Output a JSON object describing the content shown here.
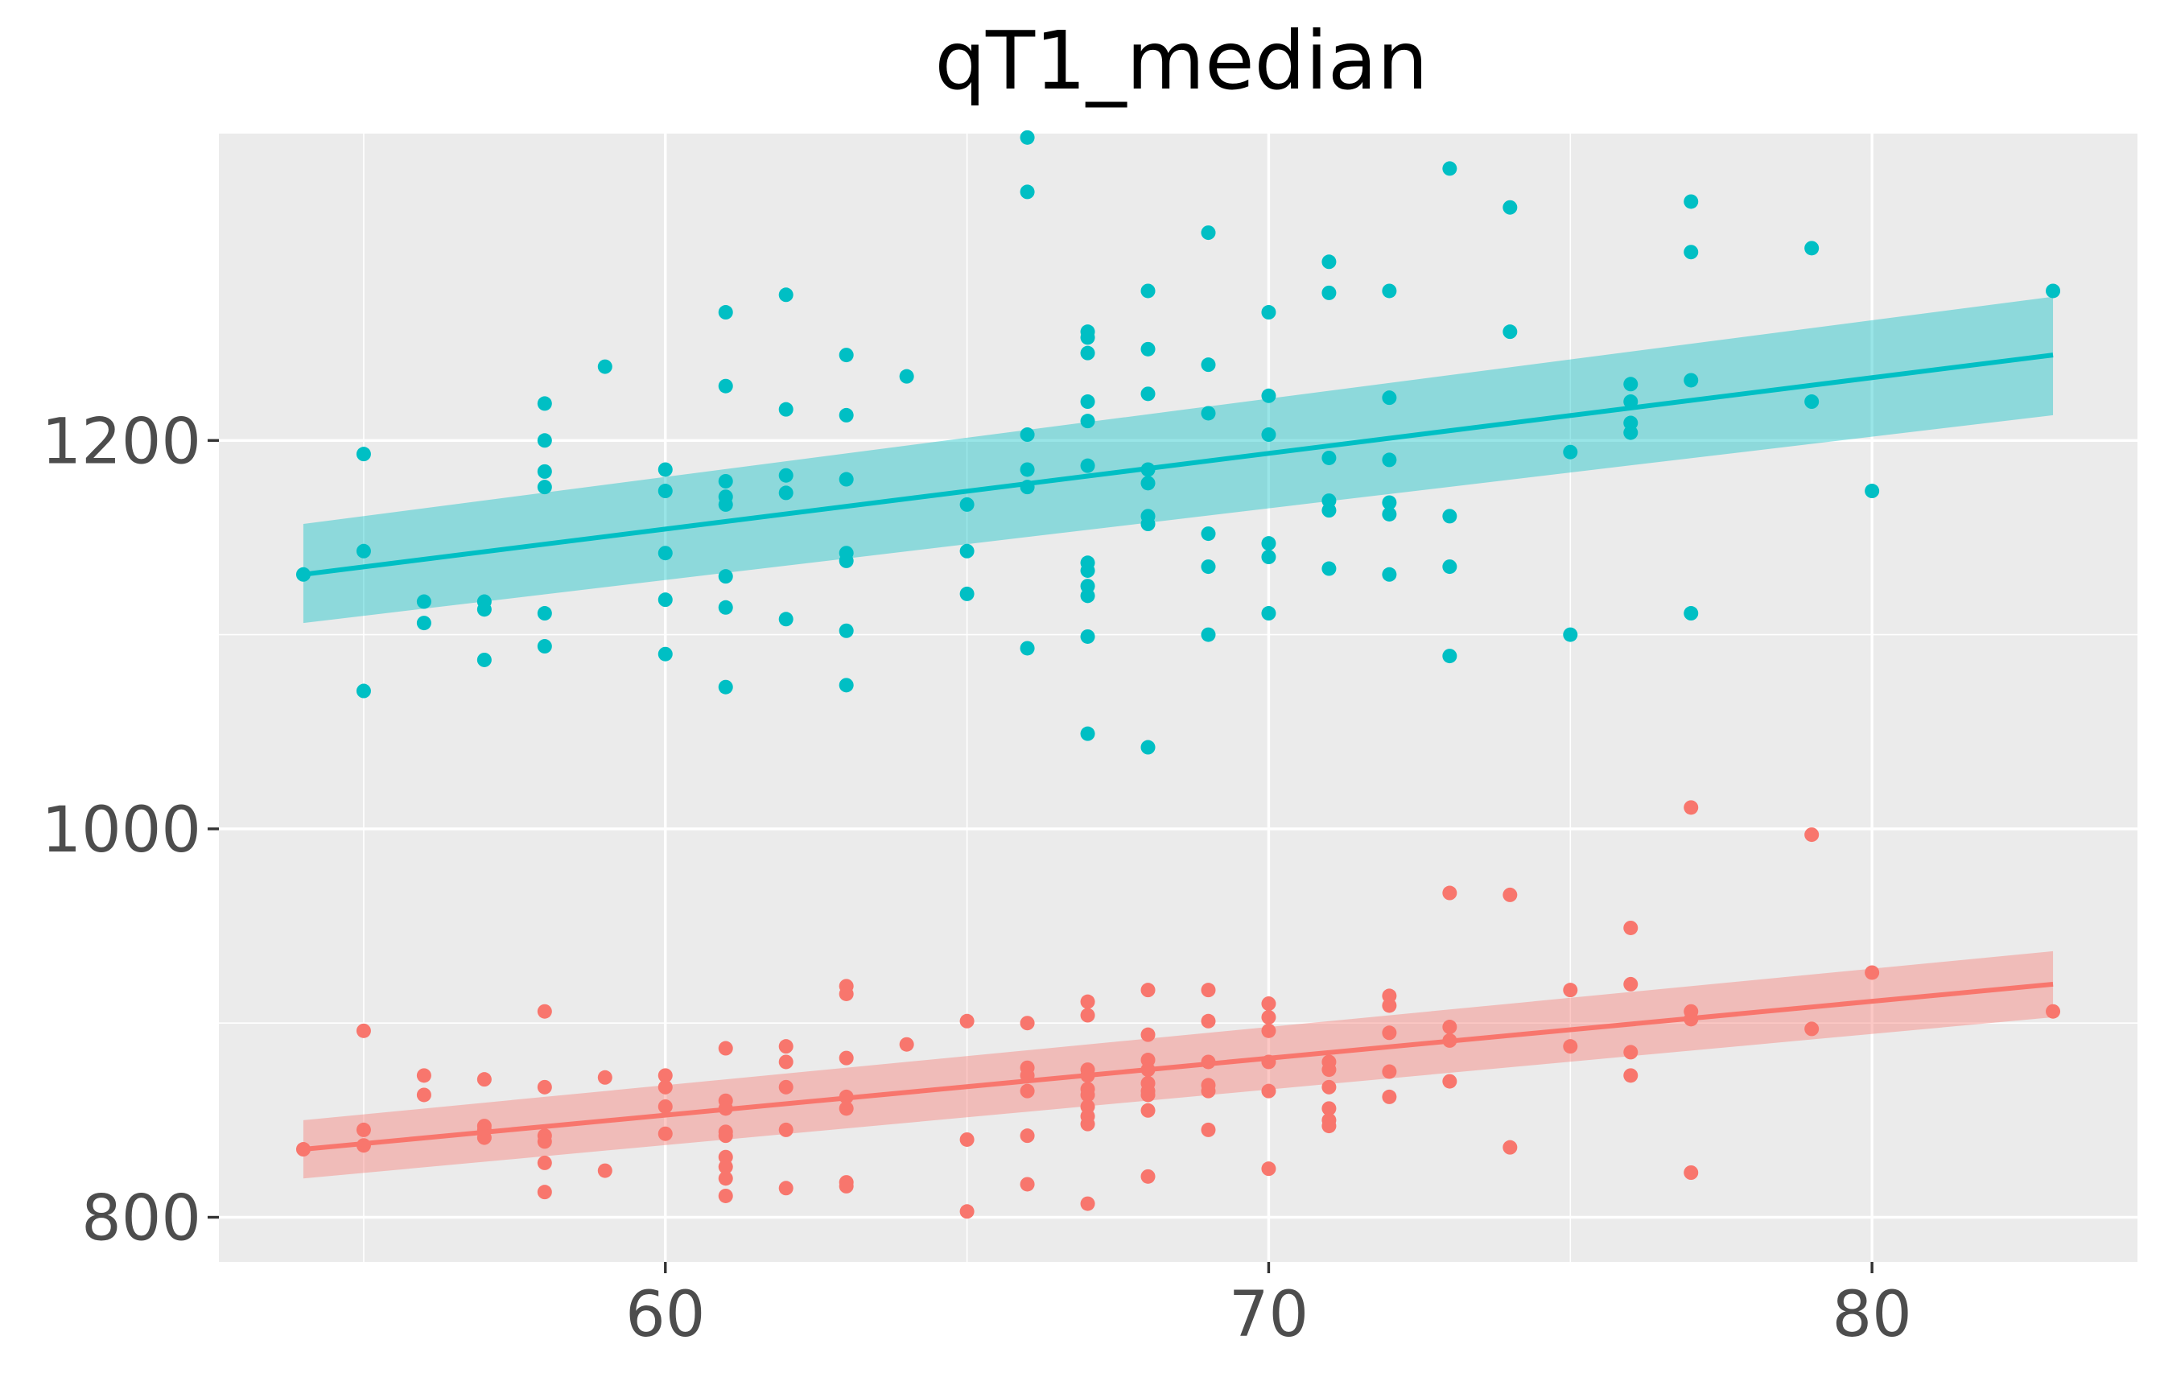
{
  "chart_data": {
    "type": "scatter",
    "title": "qT1_median",
    "xlabel": "",
    "ylabel": "",
    "xlim": [
      52.6,
      84.4
    ],
    "ylim": [
      777,
      1358
    ],
    "x_ticks": [
      60,
      70,
      80
    ],
    "y_ticks": [
      800,
      1000,
      1200
    ],
    "x_tick_labels": [
      "60",
      "70",
      "80"
    ],
    "y_tick_labels": [
      "800",
      "1000",
      "1200"
    ],
    "x_minor_ticks": [
      55,
      65,
      75
    ],
    "y_minor_ticks": [
      900,
      1100
    ],
    "grid": true,
    "legend": "none",
    "series": [
      {
        "color": "#00BFC4",
        "fill_color": "#00BFC4",
        "points": [
          [
            54,
            1131
          ],
          [
            55,
            1193
          ],
          [
            55,
            1143
          ],
          [
            55,
            1071
          ],
          [
            56,
            1117
          ],
          [
            56,
            1106
          ],
          [
            57,
            1117
          ],
          [
            57,
            1113
          ],
          [
            57,
            1087
          ],
          [
            58,
            1219
          ],
          [
            58,
            1200
          ],
          [
            58,
            1184
          ],
          [
            58,
            1176
          ],
          [
            58,
            1111
          ],
          [
            58,
            1094
          ],
          [
            59,
            1238
          ],
          [
            60,
            1185
          ],
          [
            60,
            1174
          ],
          [
            60,
            1142
          ],
          [
            60,
            1118
          ],
          [
            60,
            1090
          ],
          [
            61,
            1266
          ],
          [
            61,
            1228
          ],
          [
            61,
            1179
          ],
          [
            61,
            1171
          ],
          [
            61,
            1167
          ],
          [
            61,
            1130
          ],
          [
            61,
            1114
          ],
          [
            61,
            1073
          ],
          [
            62,
            1275
          ],
          [
            62,
            1216
          ],
          [
            62,
            1182
          ],
          [
            62,
            1173
          ],
          [
            62,
            1108
          ],
          [
            63,
            1244
          ],
          [
            63,
            1213
          ],
          [
            63,
            1180
          ],
          [
            63,
            1142
          ],
          [
            63,
            1138
          ],
          [
            63,
            1102
          ],
          [
            63,
            1074
          ],
          [
            64,
            1233
          ],
          [
            65,
            1167
          ],
          [
            65,
            1143
          ],
          [
            65,
            1121
          ],
          [
            66,
            1356
          ],
          [
            66,
            1328
          ],
          [
            66,
            1203
          ],
          [
            66,
            1185
          ],
          [
            66,
            1176
          ],
          [
            66,
            1093
          ],
          [
            67,
            1256
          ],
          [
            67,
            1253
          ],
          [
            67,
            1245
          ],
          [
            67,
            1220
          ],
          [
            67,
            1210
          ],
          [
            67,
            1187
          ],
          [
            67,
            1137
          ],
          [
            67,
            1133
          ],
          [
            67,
            1125
          ],
          [
            67,
            1120
          ],
          [
            67,
            1099
          ],
          [
            67,
            1049
          ],
          [
            68,
            1277
          ],
          [
            68,
            1247
          ],
          [
            68,
            1224
          ],
          [
            68,
            1185
          ],
          [
            68,
            1178
          ],
          [
            68,
            1161
          ],
          [
            68,
            1157
          ],
          [
            68,
            1042
          ],
          [
            69,
            1307
          ],
          [
            69,
            1239
          ],
          [
            69,
            1214
          ],
          [
            69,
            1152
          ],
          [
            69,
            1135
          ],
          [
            69,
            1100
          ],
          [
            70,
            1266
          ],
          [
            70,
            1223
          ],
          [
            70,
            1203
          ],
          [
            70,
            1147
          ],
          [
            70,
            1140
          ],
          [
            70,
            1111
          ],
          [
            71,
            1292
          ],
          [
            71,
            1276
          ],
          [
            71,
            1191
          ],
          [
            71,
            1169
          ],
          [
            71,
            1164
          ],
          [
            71,
            1134
          ],
          [
            72,
            1277
          ],
          [
            72,
            1222
          ],
          [
            72,
            1190
          ],
          [
            72,
            1168
          ],
          [
            72,
            1162
          ],
          [
            72,
            1131
          ],
          [
            73,
            1340
          ],
          [
            73,
            1161
          ],
          [
            73,
            1135
          ],
          [
            73,
            1089
          ],
          [
            74,
            1320
          ],
          [
            74,
            1256
          ],
          [
            75,
            1194
          ],
          [
            75,
            1100
          ],
          [
            76,
            1229
          ],
          [
            76,
            1220
          ],
          [
            76,
            1209
          ],
          [
            76,
            1204
          ],
          [
            77,
            1323
          ],
          [
            77,
            1297
          ],
          [
            77,
            1231
          ],
          [
            77,
            1111
          ],
          [
            79,
            1299
          ],
          [
            79,
            1220
          ],
          [
            80,
            1174
          ],
          [
            83,
            1277
          ]
        ],
        "fit": {
          "x": [
            54,
            83
          ],
          "y": [
            1131,
            1244
          ],
          "band_lower": [
            1106,
            1213
          ],
          "band_upper": [
            1157,
            1274
          ]
        }
      },
      {
        "color": "#F8766D",
        "fill_color": "#F8766D",
        "points": [
          [
            54,
            835
          ],
          [
            55,
            896
          ],
          [
            55,
            845
          ],
          [
            55,
            837
          ],
          [
            56,
            873
          ],
          [
            56,
            863
          ],
          [
            57,
            871
          ],
          [
            57,
            847
          ],
          [
            57,
            845
          ],
          [
            57,
            841
          ],
          [
            58,
            906
          ],
          [
            58,
            867
          ],
          [
            58,
            842
          ],
          [
            58,
            839
          ],
          [
            58,
            828
          ],
          [
            58,
            813
          ],
          [
            59,
            872
          ],
          [
            59,
            824
          ],
          [
            60,
            873
          ],
          [
            60,
            867
          ],
          [
            60,
            857
          ],
          [
            60,
            843
          ],
          [
            61,
            887
          ],
          [
            61,
            860
          ],
          [
            61,
            856
          ],
          [
            61,
            844
          ],
          [
            61,
            842
          ],
          [
            61,
            831
          ],
          [
            61,
            826
          ],
          [
            61,
            820
          ],
          [
            61,
            811
          ],
          [
            62,
            888
          ],
          [
            62,
            880
          ],
          [
            62,
            867
          ],
          [
            62,
            845
          ],
          [
            62,
            815
          ],
          [
            63,
            919
          ],
          [
            63,
            915
          ],
          [
            63,
            882
          ],
          [
            63,
            862
          ],
          [
            63,
            856
          ],
          [
            63,
            818
          ],
          [
            63,
            816
          ],
          [
            64,
            889
          ],
          [
            65,
            901
          ],
          [
            65,
            840
          ],
          [
            65,
            803
          ],
          [
            66,
            900
          ],
          [
            66,
            877
          ],
          [
            66,
            873
          ],
          [
            66,
            865
          ],
          [
            66,
            842
          ],
          [
            66,
            817
          ],
          [
            67,
            911
          ],
          [
            67,
            904
          ],
          [
            67,
            876
          ],
          [
            67,
            873
          ],
          [
            67,
            866
          ],
          [
            67,
            863
          ],
          [
            67,
            857
          ],
          [
            67,
            852
          ],
          [
            67,
            848
          ],
          [
            67,
            807
          ],
          [
            68,
            917
          ],
          [
            68,
            894
          ],
          [
            68,
            881
          ],
          [
            68,
            876
          ],
          [
            68,
            869
          ],
          [
            68,
            865
          ],
          [
            68,
            863
          ],
          [
            68,
            855
          ],
          [
            68,
            821
          ],
          [
            69,
            917
          ],
          [
            69,
            901
          ],
          [
            69,
            880
          ],
          [
            69,
            868
          ],
          [
            69,
            865
          ],
          [
            69,
            845
          ],
          [
            70,
            910
          ],
          [
            70,
            903
          ],
          [
            70,
            896
          ],
          [
            70,
            880
          ],
          [
            70,
            865
          ],
          [
            70,
            825
          ],
          [
            71,
            880
          ],
          [
            71,
            876
          ],
          [
            71,
            867
          ],
          [
            71,
            856
          ],
          [
            71,
            850
          ],
          [
            71,
            847
          ],
          [
            72,
            914
          ],
          [
            72,
            909
          ],
          [
            72,
            895
          ],
          [
            72,
            875
          ],
          [
            72,
            862
          ],
          [
            73,
            967
          ],
          [
            73,
            898
          ],
          [
            73,
            891
          ],
          [
            73,
            870
          ],
          [
            74,
            966
          ],
          [
            74,
            836
          ],
          [
            75,
            917
          ],
          [
            75,
            888
          ],
          [
            76,
            949
          ],
          [
            76,
            920
          ],
          [
            76,
            885
          ],
          [
            76,
            873
          ],
          [
            77,
            1011
          ],
          [
            77,
            906
          ],
          [
            77,
            902
          ],
          [
            77,
            823
          ],
          [
            79,
            997
          ],
          [
            79,
            897
          ],
          [
            80,
            926
          ],
          [
            83,
            906
          ]
        ],
        "fit": {
          "x": [
            54,
            83
          ],
          "y": [
            835,
            920
          ],
          "band_lower": [
            820,
            903
          ],
          "band_upper": [
            850,
            937
          ]
        }
      }
    ]
  }
}
